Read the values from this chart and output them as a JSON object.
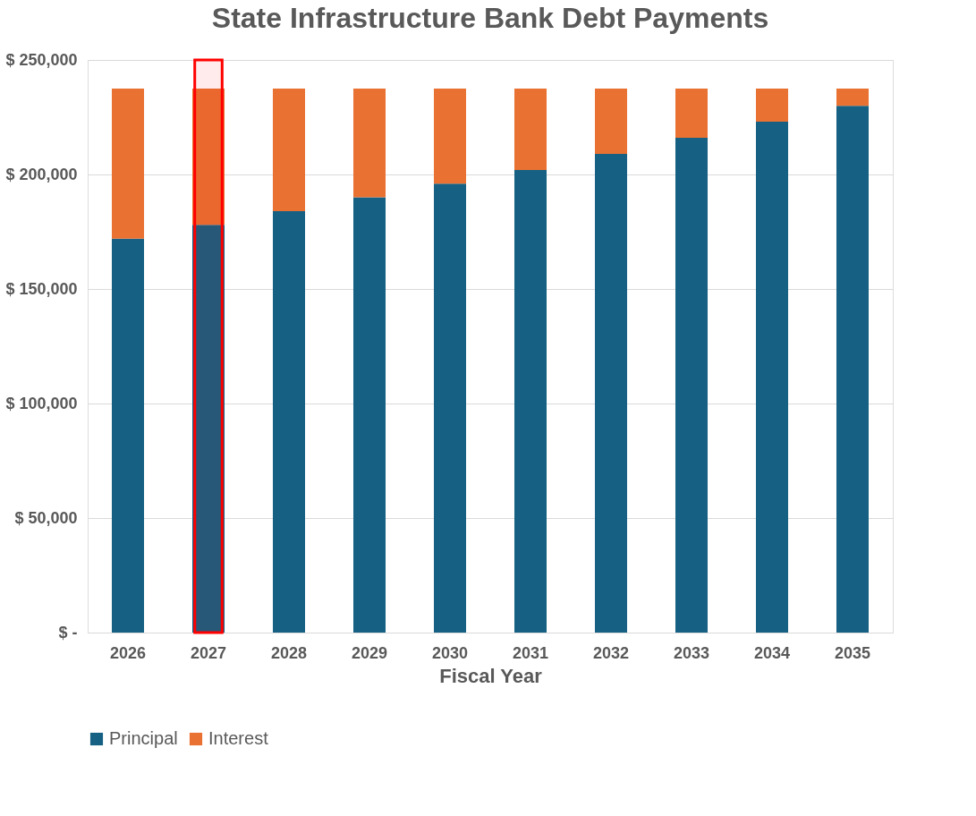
{
  "chart_data": {
    "type": "bar",
    "title": "State Infrastructure Bank Debt Payments",
    "xlabel": "Fiscal Year",
    "stacked": true,
    "categories": [
      "2026",
      "2027",
      "2028",
      "2029",
      "2030",
      "2031",
      "2032",
      "2033",
      "2034",
      "2035"
    ],
    "series": [
      {
        "name": "Principal",
        "color": "#166083",
        "values": [
          172000,
          178000,
          184000,
          190000,
          196000,
          202000,
          209000,
          216000,
          223000,
          230000
        ]
      },
      {
        "name": "Interest",
        "color": "#e97132",
        "values": [
          65500,
          59500,
          53500,
          47500,
          41500,
          35500,
          28500,
          21500,
          14500,
          7500
        ]
      }
    ],
    "ylim": [
      0,
      250000
    ],
    "yticks": [
      {
        "value": 0,
        "label": "$ -"
      },
      {
        "value": 50000,
        "label": "$ 50,000"
      },
      {
        "value": 100000,
        "label": "$ 100,000"
      },
      {
        "value": 150000,
        "label": "$ 150,000"
      },
      {
        "value": 200000,
        "label": "$ 200,000"
      },
      {
        "value": 250000,
        "label": "$ 250,000"
      }
    ],
    "grid": "y",
    "legend": "bottom",
    "bands": [
      {
        "axis": "x",
        "from": "2027",
        "to": "2027",
        "color": "#ff0000"
      }
    ]
  }
}
